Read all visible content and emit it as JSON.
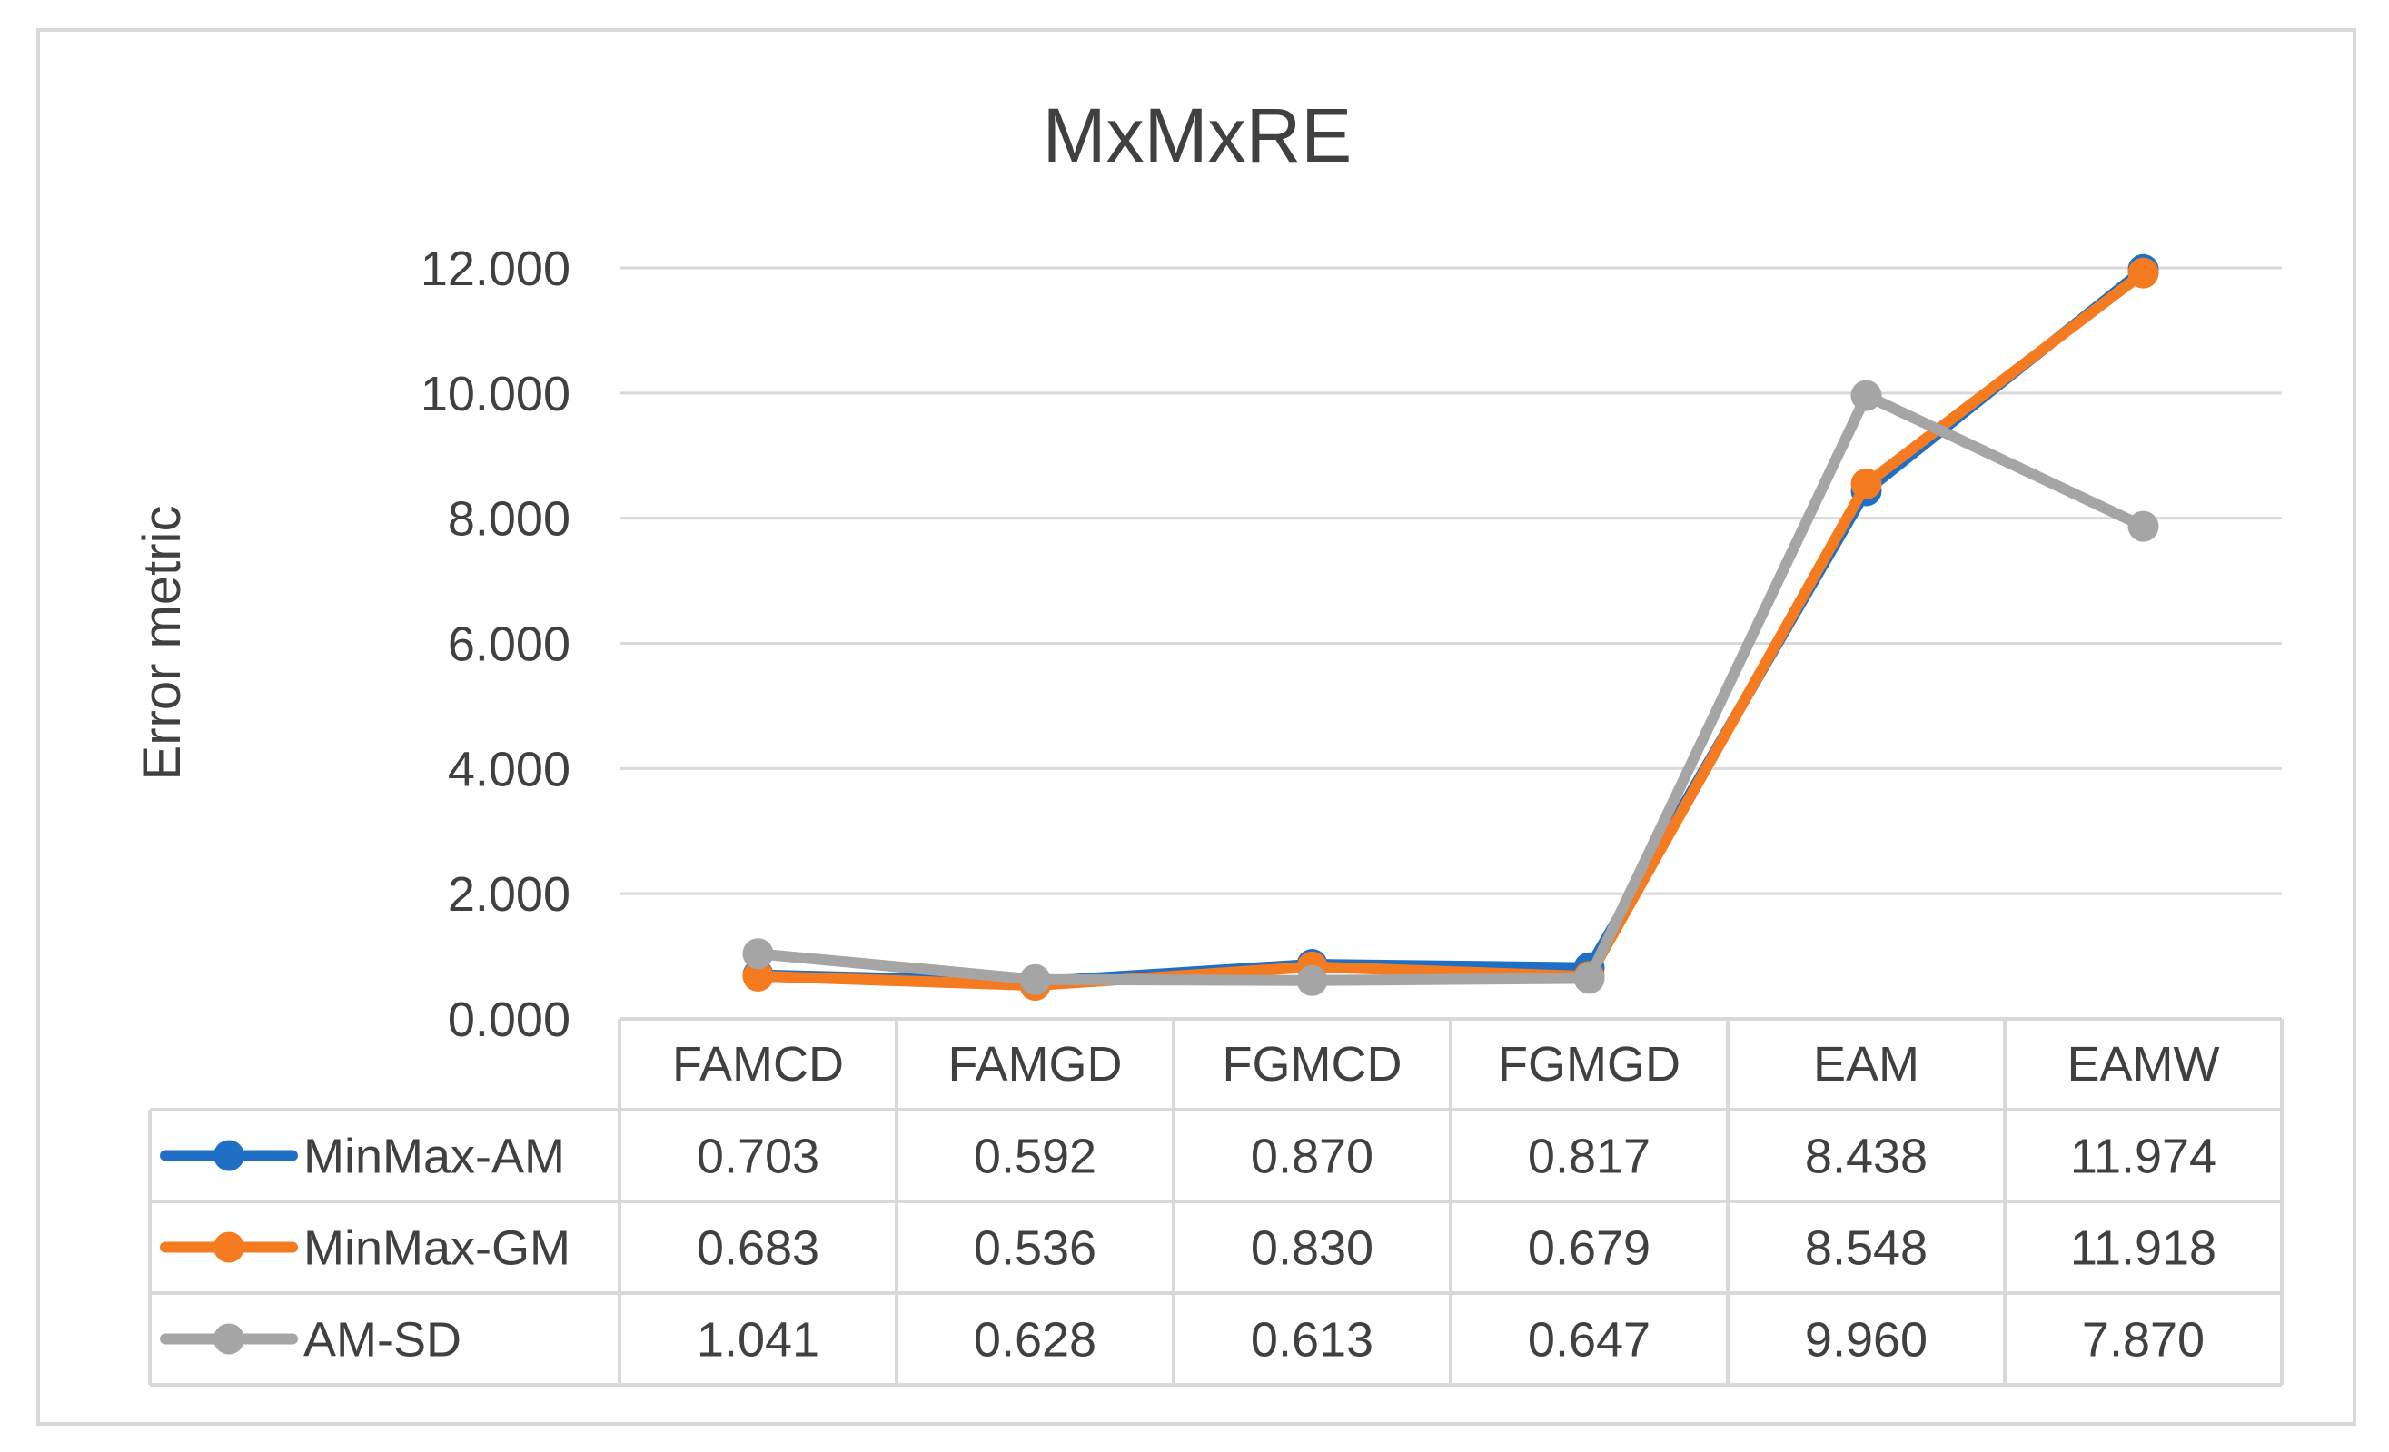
{
  "chart_data": {
    "type": "line",
    "title": "MxMxRE",
    "xlabel": "",
    "ylabel": "Error metric",
    "categories": [
      "FAMCD",
      "FAMGD",
      "FGMCD",
      "FGMGD",
      "EAM",
      "EAMW"
    ],
    "ylim": [
      0,
      12
    ],
    "yticks": [
      "0.000",
      "2.000",
      "4.000",
      "6.000",
      "8.000",
      "10.000",
      "12.000"
    ],
    "grid": true,
    "legend": "data-table",
    "series": [
      {
        "name": "MinMax-AM",
        "color": "#1F6FC5",
        "values": [
          0.703,
          0.592,
          0.87,
          0.817,
          8.438,
          11.974
        ],
        "labels": [
          "0.703",
          "0.592",
          "0.870",
          "0.817",
          "8.438",
          "11.974"
        ]
      },
      {
        "name": "MinMax-GM",
        "color": "#F47B20",
        "values": [
          0.683,
          0.536,
          0.83,
          0.679,
          8.548,
          11.918
        ],
        "labels": [
          "0.683",
          "0.536",
          "0.830",
          "0.679",
          "8.548",
          "11.918"
        ]
      },
      {
        "name": "AM-SD",
        "color": "#A5A5A5",
        "values": [
          1.041,
          0.628,
          0.613,
          0.647,
          9.96,
          7.87
        ],
        "labels": [
          "1.041",
          "0.628",
          "0.613",
          "0.647",
          "9.960",
          "7.870"
        ]
      }
    ]
  }
}
